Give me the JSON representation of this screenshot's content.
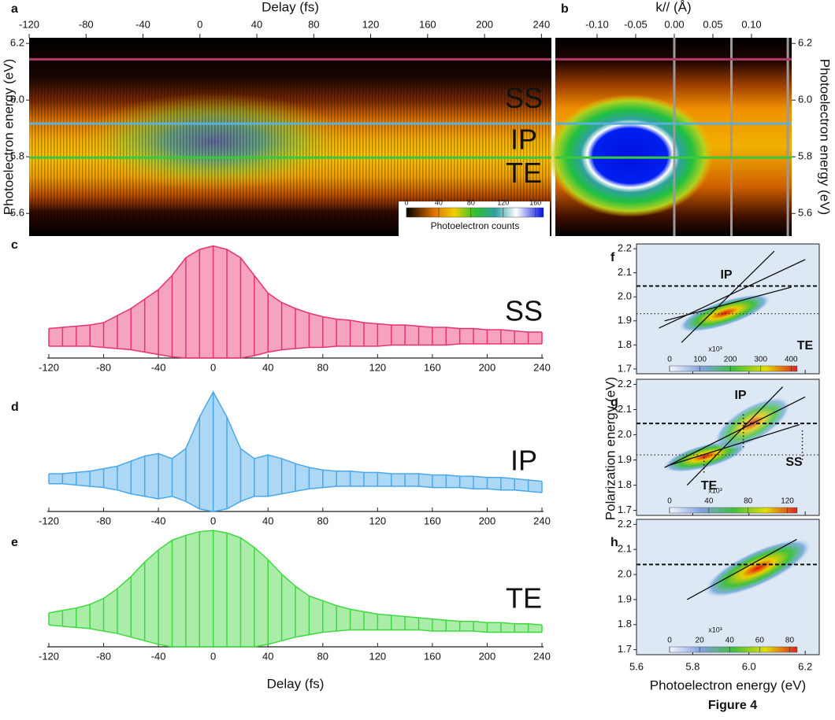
{
  "caption": "Figure 4",
  "chart_data": [
    {
      "type": "heatmap",
      "panel": "a",
      "xlabel": "Delay (fs)",
      "ylabel": "Photoelectron energy (eV)",
      "xlim": [
        -120,
        247
      ],
      "xticks": [
        -120,
        -80,
        -40,
        0,
        40,
        80,
        120,
        160,
        200,
        240
      ],
      "ylim": [
        5.52,
        6.22
      ],
      "yticks": [
        5.6,
        5.8,
        {
          "value": 6,
          "label": "6.0"
        },
        6.2
      ],
      "hlines": [
        {
          "label": "SS",
          "value": 6.144,
          "color": "#b23a6a",
          "label_color": "#e8336e"
        },
        {
          "label": "IP",
          "value": 5.917,
          "color": "#5ab0dc",
          "label_color": "#3a9ee6"
        },
        {
          "label": "TE",
          "value": 5.797,
          "color": "#3cc83c",
          "label_color": "#36dc36"
        }
      ],
      "colorbar": {
        "label": "Photoelectron counts",
        "lim": [
          0,
          170
        ],
        "ticks": [
          0,
          40,
          80,
          120,
          160
        ]
      }
    },
    {
      "type": "heatmap",
      "panel": "b",
      "xlabel": "k// (Å)",
      "ylabel": "Photoelectron energy (eV)",
      "xlim": [
        -0.154,
        0.152
      ],
      "xticks": [
        {
          "value": -0.1,
          "label": "-0.10"
        },
        -0.05,
        {
          "value": 0,
          "label": "0.00"
        },
        0.05,
        {
          "value": 0.1,
          "label": "0.10"
        }
      ],
      "ylim": [
        5.52,
        6.22
      ],
      "yticks": [
        5.6,
        5.8,
        {
          "value": 6,
          "label": "6.0"
        },
        6.2
      ],
      "hlines": [
        {
          "value": 6.144,
          "color": "#b23a6a"
        },
        {
          "value": 5.917,
          "color": "#5ab0dc"
        },
        {
          "value": 5.797,
          "color": "#3cc83c"
        }
      ],
      "vlines": [
        0,
        0.074,
        0.147
      ],
      "vline_color": "#9a9a9a"
    },
    {
      "type": "line",
      "panel": "c",
      "label": "SS",
      "label_color": "#e8336e",
      "xlim": [
        -120,
        240
      ],
      "xticks": [
        -120,
        -80,
        -40,
        0,
        40,
        80,
        120,
        160,
        200,
        240
      ],
      "ylim": [
        0,
        100
      ],
      "x": [
        -120,
        -110,
        -100,
        -90,
        -80,
        -70,
        -60,
        -50,
        -40,
        -30,
        -20,
        -10,
        0,
        10,
        20,
        30,
        40,
        50,
        60,
        70,
        80,
        90,
        100,
        110,
        120,
        130,
        140,
        150,
        160,
        170,
        180,
        190,
        200,
        210,
        220,
        230,
        240
      ],
      "series": [
        {
          "color": "#e8336e",
          "values": [
            25,
            26,
            27,
            28,
            30,
            36,
            42,
            50,
            58,
            70,
            85,
            92,
            95,
            92,
            85,
            70,
            55,
            47,
            42,
            38,
            35,
            33,
            32,
            30,
            29,
            28,
            28,
            27,
            26,
            26,
            25,
            25,
            24,
            24,
            23,
            22,
            22
          ]
        },
        {
          "color": "#e8336e",
          "values": [
            10,
            10,
            10,
            10,
            9,
            8,
            7,
            5,
            3,
            1,
            0,
            0,
            0,
            0,
            0,
            2,
            5,
            7,
            8,
            9,
            9,
            10,
            10,
            10,
            10,
            11,
            11,
            11,
            11,
            11,
            12,
            12,
            12,
            12,
            12,
            12,
            12
          ]
        }
      ]
    },
    {
      "type": "line",
      "panel": "d",
      "label": "IP",
      "label_color": "#3a9ee6",
      "xlim": [
        -120,
        240
      ],
      "xticks": [
        -120,
        -80,
        -40,
        0,
        40,
        80,
        120,
        160,
        200,
        240
      ],
      "ylim": [
        0,
        100
      ],
      "x": [
        -120,
        -110,
        -100,
        -90,
        -80,
        -70,
        -60,
        -50,
        -40,
        -30,
        -20,
        -10,
        0,
        10,
        20,
        30,
        40,
        50,
        60,
        70,
        80,
        90,
        100,
        110,
        120,
        130,
        140,
        150,
        160,
        170,
        180,
        190,
        200,
        210,
        220,
        230,
        240
      ],
      "series": [
        {
          "color": "#4aa8e8",
          "values": [
            30,
            30,
            31,
            32,
            34,
            36,
            40,
            44,
            46,
            42,
            50,
            75,
            95,
            75,
            50,
            42,
            45,
            42,
            38,
            35,
            33,
            32,
            32,
            31,
            31,
            30,
            30,
            30,
            29,
            29,
            28,
            28,
            27,
            27,
            26,
            25,
            24
          ]
        },
        {
          "color": "#4aa8e8",
          "values": [
            22,
            22,
            21,
            20,
            19,
            17,
            14,
            12,
            10,
            12,
            8,
            2,
            0,
            2,
            8,
            12,
            12,
            14,
            16,
            18,
            19,
            20,
            20,
            20,
            20,
            20,
            20,
            20,
            19,
            19,
            19,
            18,
            18,
            17,
            17,
            16,
            15
          ]
        }
      ]
    },
    {
      "type": "line",
      "panel": "e",
      "label": "TE",
      "label_color": "#36dc36",
      "xlabel": "Delay (fs)",
      "xlim": [
        -120,
        240
      ],
      "xticks": [
        -120,
        -80,
        -40,
        0,
        40,
        80,
        120,
        160,
        200,
        240
      ],
      "ylim": [
        0,
        100
      ],
      "x": [
        -120,
        -110,
        -100,
        -90,
        -80,
        -70,
        -60,
        -50,
        -40,
        -30,
        -20,
        -10,
        0,
        10,
        20,
        30,
        40,
        50,
        60,
        70,
        80,
        90,
        100,
        110,
        120,
        130,
        140,
        150,
        160,
        170,
        180,
        190,
        200,
        210,
        220,
        230,
        240
      ],
      "series": [
        {
          "color": "#40d840",
          "values": [
            28,
            30,
            32,
            35,
            40,
            48,
            58,
            70,
            80,
            88,
            92,
            95,
            96,
            94,
            90,
            82,
            72,
            60,
            50,
            42,
            38,
            34,
            31,
            29,
            27,
            26,
            25,
            24,
            23,
            22,
            21,
            21,
            20,
            20,
            19,
            19,
            18
          ]
        },
        {
          "color": "#40d840",
          "values": [
            18,
            17,
            16,
            15,
            13,
            11,
            8,
            5,
            2,
            0,
            0,
            0,
            0,
            0,
            0,
            0,
            2,
            5,
            8,
            10,
            12,
            13,
            14,
            14,
            14,
            14,
            14,
            14,
            13,
            13,
            13,
            13,
            12,
            12,
            12,
            12,
            12
          ]
        }
      ]
    },
    {
      "type": "heatmap",
      "panel": "f",
      "xlim": [
        5.6,
        6.25
      ],
      "xticks": [
        5.6,
        5.8,
        6,
        6.2
      ],
      "ylim": [
        1.68,
        2.22
      ],
      "yticks": [
        1.7,
        1.8,
        1.9,
        {
          "value": 2,
          "label": "2.0"
        },
        2.1,
        2.2
      ],
      "dashed": 2.045,
      "dotted": 1.93,
      "fits": [
        [
          5.68,
          1.87,
          6.2,
          2.155
        ],
        [
          5.76,
          1.81,
          6.09,
          2.19
        ],
        [
          5.7,
          1.9,
          6.15,
          2.04
        ]
      ],
      "annotations": [
        {
          "text": "IP",
          "color": "#111111"
        },
        {
          "text": "TE",
          "color": "#111111"
        }
      ],
      "colorbar": {
        "unit": "x10³",
        "lim": [
          0,
          420
        ],
        "ticks": [
          0,
          100,
          200,
          300,
          400
        ]
      }
    },
    {
      "type": "heatmap",
      "panel": "g",
      "ylabel": "Polarization energy (eV)",
      "xlim": [
        5.6,
        6.25
      ],
      "xticks": [
        5.6,
        5.8,
        6,
        6.2
      ],
      "ylim": [
        1.68,
        2.22
      ],
      "yticks": [
        1.7,
        1.8,
        1.9,
        {
          "value": 2,
          "label": "2.0"
        },
        2.1,
        2.2
      ],
      "dashed": 2.045,
      "dotted": 1.92,
      "fits": [
        [
          5.7,
          1.87,
          6.2,
          2.15
        ],
        [
          5.78,
          1.8,
          6.12,
          2.19
        ],
        [
          5.72,
          1.88,
          6.18,
          2.04
        ]
      ],
      "drops": [
        [
          5.84,
          1.85,
          1.92
        ],
        [
          5.98,
          1.95,
          2.09
        ],
        [
          6.19,
          1.9,
          2.02
        ]
      ],
      "annotations": [
        {
          "text": "IP",
          "color": "#3a9ee6"
        },
        {
          "text": "TE",
          "color": "#36cc36"
        },
        {
          "text": "SS",
          "color": "#e8336e"
        }
      ],
      "colorbar": {
        "unit": "x10³",
        "lim": [
          0,
          130
        ],
        "ticks": [
          0,
          40,
          80,
          120
        ]
      }
    },
    {
      "type": "heatmap",
      "panel": "h",
      "xlabel": "Photoelectron energy (eV)",
      "xlim": [
        5.6,
        6.25
      ],
      "xticks": [
        5.6,
        5.8,
        {
          "value": 6,
          "label": "6.0"
        },
        6.2
      ],
      "ylim": [
        1.68,
        2.22
      ],
      "yticks": [
        1.7,
        1.8,
        1.9,
        {
          "value": 2,
          "label": "2.0"
        },
        2.1,
        2.2
      ],
      "dashed": 2.04,
      "fits": [
        [
          5.78,
          1.9,
          6.17,
          2.14
        ]
      ],
      "colorbar": {
        "unit": "x10³",
        "lim": [
          0,
          85
        ],
        "ticks": [
          0,
          20,
          40,
          60,
          80
        ]
      }
    }
  ]
}
